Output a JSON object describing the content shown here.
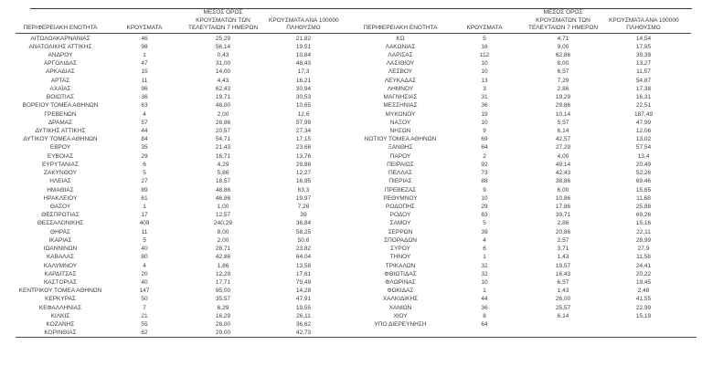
{
  "colors": {
    "background": "#ffffff",
    "text": "#3d3d3d",
    "rule": "#4a4a4a"
  },
  "columns": {
    "region": "ΠΕΡΙΦΕΡΕΙΑΚΗ ΕΝΟΤΗΤΑ",
    "cases": "ΚΡΟΥΣΜΑΤΑ",
    "avg7_lines": [
      "ΜΕΣΟΣ ΟΡΟΣ",
      "ΚΡΟΥΣΜΑΤΩΝ ΤΩΝ",
      "ΤΕΛΕΥΤΑΙΩΝ 7 ΗΜΕΡΩΝ"
    ],
    "per100k_lines": [
      "ΚΡΟΥΣΜΑΤΑ ΑΝΑ 100000",
      "ΠΛΗΘΥΣΜΟ"
    ]
  },
  "tables": [
    {
      "rows": [
        [
          "ΑΙΤΩΛΟΑΚΑΡΝΑΝΙΑΣ",
          "46",
          "25,29",
          "21,82"
        ],
        [
          "ΑΝΑΤΟΛΙΚΗΣ ΑΤΤΙΚΗΣ",
          "98",
          "56,14",
          "19,51"
        ],
        [
          "ΑΝΔΡΟΥ",
          "1",
          "0,43",
          "10,84"
        ],
        [
          "ΑΡΓΟΛΙΔΑΣ",
          "47",
          "31,00",
          "48,43"
        ],
        [
          "ΑΡΚΑΔΙΑΣ",
          "15",
          "14,00",
          "17,3"
        ],
        [
          "ΑΡΤΑΣ",
          "11",
          "4,43",
          "16,21"
        ],
        [
          "ΑΧΑΪΑΣ",
          "96",
          "62,43",
          "30,94"
        ],
        [
          "ΒΟΙΩΤΙΑΣ",
          "36",
          "19,71",
          "30,53"
        ],
        [
          "ΒΟΡΕΙΟΥ ΤΟΜΕΑ ΑΘΗΝΩΝ",
          "63",
          "48,00",
          "10,65"
        ],
        [
          "ΓΡΕΒΕΝΩΝ",
          "4",
          "2,00",
          "12,6"
        ],
        [
          "ΔΡΑΜΑΣ",
          "57",
          "28,86",
          "57,99"
        ],
        [
          "ΔΥΤΙΚΗΣ ΑΤΤΙΚΗΣ",
          "44",
          "20,57",
          "27,34"
        ],
        [
          "ΔΥΤΙΚΟΥ ΤΟΜΕΑ ΑΘΗΝΩΝ",
          "84",
          "54,71",
          "17,15"
        ],
        [
          "ΕΒΡΟΥ",
          "35",
          "21,43",
          "23,66"
        ],
        [
          "ΕΥΒΟΙΑΣ",
          "29",
          "16,71",
          "13,76"
        ],
        [
          "ΕΥΡΥΤΑΝΙΑΣ",
          "6",
          "4,29",
          "29,88"
        ],
        [
          "ΖΑΚΥΝΘΟΥ",
          "5",
          "5,86",
          "12,27"
        ],
        [
          "ΗΛΕΙΑΣ",
          "27",
          "18,57",
          "16,95"
        ],
        [
          "ΗΜΑΘΙΑΣ",
          "89",
          "48,86",
          "63,3"
        ],
        [
          "ΗΡΑΚΛΕΙΟΥ",
          "61",
          "46,86",
          "19,97"
        ],
        [
          "ΘΑΣΟΥ",
          "1",
          "1,00",
          "7,26"
        ],
        [
          "ΘΕΣΠΡΩΤΙΑΣ",
          "17",
          "12,57",
          "39"
        ],
        [
          "ΘΕΣΣΑΛΟΝΙΚΗΣ",
          "409",
          "240,29",
          "36,84"
        ],
        [
          "ΘΗΡΑΣ",
          "11",
          "8,00",
          "58,25"
        ],
        [
          "ΙΚΑΡΙΑΣ",
          "5",
          "2,00",
          "50,6"
        ],
        [
          "ΙΩΑΝΝΙΝΩΝ",
          "40",
          "28,71",
          "23,82"
        ],
        [
          "ΚΑΒΑΛΑΣ",
          "80",
          "42,86",
          "64,04"
        ],
        [
          "ΚΑΛΥΜΝΟΥ",
          "4",
          "1,86",
          "13,58"
        ],
        [
          "ΚΑΡΔΙΤΣΑΣ",
          "20",
          "12,29",
          "17,61"
        ],
        [
          "ΚΑΣΤΟΡΙΑΣ",
          "40",
          "17,71",
          "79,49"
        ],
        [
          "ΚΕΝΤΡΙΚΟΥ ΤΟΜΕΑ ΑΘΗΝΩΝ",
          "147",
          "95,00",
          "14,28"
        ],
        [
          "ΚΕΡΚΥΡΑΣ",
          "50",
          "35,57",
          "47,91"
        ],
        [
          "ΚΕΦΑΛΛΗΝΙΑΣ",
          "7",
          "6,29",
          "19,55"
        ],
        [
          "ΚΙΛΚΙΣ",
          "21",
          "16,29",
          "26,11"
        ],
        [
          "ΚΟΖΑΝΗΣ",
          "55",
          "28,00",
          "36,62"
        ],
        [
          "ΚΟΡΙΝΘΙΑΣ",
          "62",
          "29,00",
          "42,73"
        ]
      ]
    },
    {
      "rows": [
        [
          "ΚΩ",
          "5",
          "4,71",
          "14,54"
        ],
        [
          "ΛΑΚΩΝΙΑΣ",
          "16",
          "9,00",
          "17,95"
        ],
        [
          "ΛΑΡΙΣΑΣ",
          "112",
          "62,86",
          "39,39"
        ],
        [
          "ΛΑΣΙΘΙΟΥ",
          "10",
          "8,00",
          "13,27"
        ],
        [
          "ΛΕΣΒΟΥ",
          "10",
          "6,57",
          "11,57"
        ],
        [
          "ΛΕΥΚΑΔΑΣ",
          "13",
          "7,29",
          "54,87"
        ],
        [
          "ΛΗΜΝΟΥ",
          "3",
          "2,86",
          "17,38"
        ],
        [
          "ΜΑΓΝΗΣΙΑΣ",
          "31",
          "19,29",
          "16,31"
        ],
        [
          "ΜΕΣΣΗΝΙΑΣ",
          "36",
          "29,86",
          "22,51"
        ],
        [
          "ΜΥΚΟΝΟΥ",
          "19",
          "10,14",
          "187,49"
        ],
        [
          "ΝΑΞΟΥ",
          "10",
          "5,57",
          "47,99"
        ],
        [
          "ΝΗΣΩΝ",
          "9",
          "6,14",
          "12,06"
        ],
        [
          "ΝΟΤΙΟΥ ΤΟΜΕΑ ΑΘΗΝΩΝ",
          "69",
          "42,57",
          "13,02"
        ],
        [
          "ΞΑΝΘΗΣ",
          "64",
          "27,29",
          "57,54"
        ],
        [
          "ΠΑΡΟΥ",
          "2",
          "4,00",
          "13,4"
        ],
        [
          "ΠΕΙΡΑΙΩΣ",
          "92",
          "49,14",
          "20,49"
        ],
        [
          "ΠΕΛΛΑΣ",
          "73",
          "42,43",
          "52,26"
        ],
        [
          "ΠΙΕΡΙΑΣ",
          "88",
          "38,86",
          "69,46"
        ],
        [
          "ΠΡΕΒΕΖΑΣ",
          "9",
          "6,00",
          "15,65"
        ],
        [
          "ΡΕΘΥΜΝΟΥ",
          "10",
          "10,86",
          "11,68"
        ],
        [
          "ΡΟΔΟΠΗΣ",
          "29",
          "17,86",
          "25,88"
        ],
        [
          "ΡΟΔΟΥ",
          "83",
          "39,71",
          "69,26"
        ],
        [
          "ΣΑΜΟΥ",
          "5",
          "2,86",
          "15,16"
        ],
        [
          "ΣΕΡΡΩΝ",
          "39",
          "20,86",
          "22,11"
        ],
        [
          "ΣΠΟΡΑΔΩΝ",
          "4",
          "2,57",
          "28,99"
        ],
        [
          "ΣΥΡΟΥ",
          "6",
          "3,71",
          "27,9"
        ],
        [
          "ΤΗΝΟΥ",
          "1",
          "1,43",
          "11,58"
        ],
        [
          "ΤΡΙΚΑΛΩΝ",
          "32",
          "19,57",
          "24,41"
        ],
        [
          "ΦΘΙΩΤΙΔΑΣ",
          "32",
          "16,43",
          "20,22"
        ],
        [
          "ΦΛΩΡΙΝΑΣ",
          "10",
          "6,57",
          "19,45"
        ],
        [
          "ΦΩΚΙΔΑΣ",
          "1",
          "1,43",
          "2,48"
        ],
        [
          "ΧΑΛΚΙΔΙΚΗΣ",
          "44",
          "26,00",
          "41,55"
        ],
        [
          "ΧΑΝΙΩΝ",
          "36",
          "25,57",
          "22,99"
        ],
        [
          "ΧΙΟΥ",
          "8",
          "6,14",
          "15,19"
        ],
        [
          "ΥΠΟ ΔΙΕΡΕΥΝΗΣΗ",
          "64",
          "",
          ""
        ]
      ]
    }
  ]
}
